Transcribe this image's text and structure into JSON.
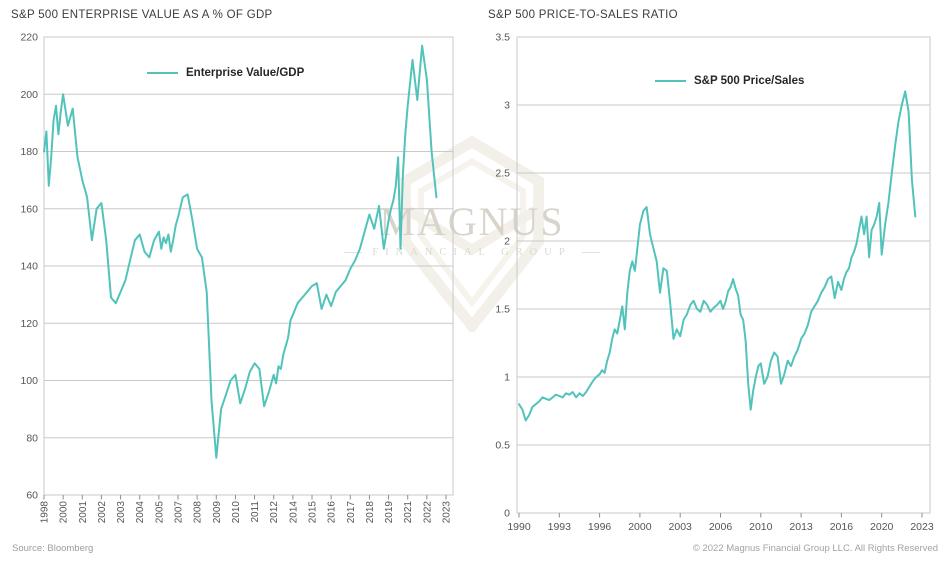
{
  "colors": {
    "series": "#52c3bb",
    "grid": "#c9c9c9",
    "tick": "#8c8c8c",
    "axis_text": "#555555",
    "title_text": "#3c3c3c",
    "watermark": "#d8d4cc"
  },
  "footer": {
    "source": "Source: Bloomberg",
    "copyright": "© 2022 Magnus Financial Group LLC. All Rights Reserved"
  },
  "watermark": {
    "name": "MAGNUS",
    "subtitle": "FINANCIAL GROUP"
  },
  "chart_data": [
    {
      "type": "line",
      "title": "S&P 500 ENTERPRISE VALUE AS A % OF GDP",
      "legend": "Enterprise Value/GDP",
      "legend_position": "top-center",
      "color": "#52c3bb",
      "grid": "horizontal",
      "xlabel": "",
      "ylabel": "",
      "ylim": [
        60,
        220
      ],
      "ytick_step": 20,
      "y_tick_labels": [
        "220",
        "200",
        "180",
        "160",
        "140",
        "120",
        "100",
        "80",
        "60"
      ],
      "x_tick_labels": [
        "1998",
        "2000",
        "2001",
        "2002",
        "2003",
        "2004",
        "2005",
        "2007",
        "2008",
        "2009",
        "2010",
        "2011",
        "2012",
        "2014",
        "2015",
        "2016",
        "2017",
        "2018",
        "2019",
        "2021",
        "2022",
        "2023"
      ],
      "x_start": 1998.0,
      "x_step": 0.25,
      "values": [
        180,
        187,
        168,
        178,
        191,
        196,
        186,
        194,
        200,
        189,
        195,
        178,
        170,
        164,
        149,
        160,
        162,
        149,
        129,
        127,
        131,
        135,
        142,
        149,
        151,
        145,
        143,
        149,
        152,
        146,
        150,
        148,
        151,
        145,
        149,
        154,
        157,
        164,
        165,
        156,
        146,
        143,
        131,
        93,
        73,
        90,
        95,
        100,
        102,
        92,
        97,
        103,
        106,
        104,
        91,
        96,
        102,
        99,
        105,
        104,
        109,
        112,
        115,
        121,
        123,
        127,
        129,
        131,
        133,
        134,
        125,
        130,
        126,
        131,
        133,
        135,
        139,
        142,
        146,
        152,
        158,
        153,
        161,
        146,
        156,
        160,
        163,
        168,
        178,
        146,
        172,
        186,
        196,
        212,
        198,
        217,
        205,
        180,
        164
      ]
    },
    {
      "type": "line",
      "title": "S&P 500 PRICE-TO-SALES RATIO",
      "legend": "S&P 500 Price/Sales",
      "legend_position": "top-center",
      "color": "#52c3bb",
      "grid": "horizontal",
      "xlabel": "",
      "ylabel": "",
      "ylim": [
        0,
        3.5
      ],
      "ytick_step": 0.5,
      "y_tick_labels": [
        "3.5",
        "3",
        "2.5",
        "2",
        "1.5",
        "1",
        "0.5",
        "0"
      ],
      "x_tick_labels": [
        "1990",
        "1993",
        "1996",
        "2000",
        "2003",
        "2006",
        "2010",
        "2013",
        "2016",
        "2020",
        "2023"
      ],
      "x_start": 1990.0,
      "x_step": 0.25,
      "values": [
        0.8,
        0.76,
        0.68,
        0.72,
        0.78,
        0.8,
        0.82,
        0.85,
        0.84,
        0.83,
        0.85,
        0.87,
        0.86,
        0.85,
        0.88,
        0.87,
        0.89,
        0.85,
        0.88,
        0.86,
        0.89,
        0.93,
        0.97,
        1.0,
        1.02,
        1.05,
        1.03,
        1.12,
        1.18,
        1.28,
        1.35,
        1.32,
        1.42,
        1.52,
        1.35,
        1.62,
        1.78,
        1.85,
        1.78,
        1.95,
        2.12,
        2.22,
        2.25,
        2.05,
        1.95,
        1.85,
        1.62,
        1.8,
        1.78,
        1.55,
        1.28,
        1.35,
        1.3,
        1.42,
        1.46,
        1.53,
        1.56,
        1.5,
        1.48,
        1.56,
        1.53,
        1.48,
        1.51,
        1.53,
        1.56,
        1.5,
        1.55,
        1.63,
        1.66,
        1.72,
        1.65,
        1.6,
        1.46,
        1.42,
        1.26,
        0.95,
        0.76,
        0.9,
        1.0,
        1.08,
        1.1,
        0.95,
        1.0,
        1.12,
        1.18,
        1.15,
        0.95,
        1.02,
        1.12,
        1.08,
        1.15,
        1.2,
        1.28,
        1.32,
        1.38,
        1.48,
        1.52,
        1.56,
        1.62,
        1.66,
        1.72,
        1.74,
        1.58,
        1.7,
        1.64,
        1.72,
        1.77,
        1.8,
        1.88,
        1.92,
        1.98,
        2.08,
        2.18,
        2.05,
        2.18,
        1.88,
        2.08,
        2.12,
        2.18,
        2.28,
        1.9,
        2.12,
        2.28,
        2.5,
        2.7,
        2.88,
        3.0,
        3.1,
        2.95,
        2.45,
        2.18
      ]
    }
  ]
}
